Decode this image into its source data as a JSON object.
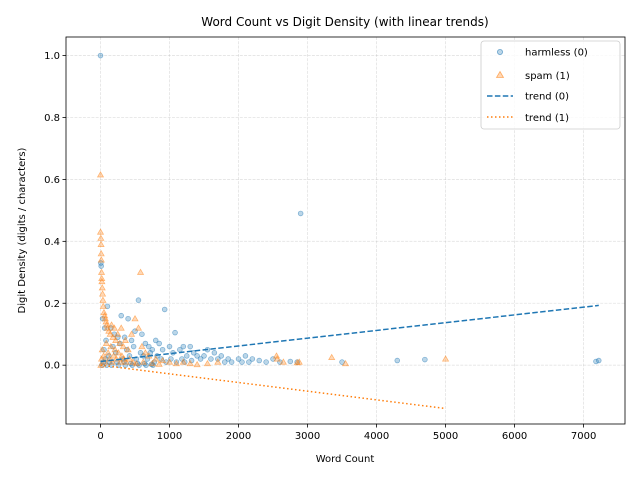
{
  "chart_data": {
    "type": "scatter",
    "title": "Word Count vs Digit Density (with linear trends)",
    "xlabel": "Word Count",
    "ylabel": "Digit Density (digits / characters)",
    "xlim": [
      -500,
      7600
    ],
    "ylim": [
      -0.19,
      1.06
    ],
    "xticks": [
      0,
      1000,
      2000,
      3000,
      4000,
      5000,
      6000,
      7000
    ],
    "yticks": [
      0.0,
      0.2,
      0.4,
      0.6,
      0.8,
      1.0
    ],
    "xtick_labels": [
      "0",
      "1000",
      "2000",
      "3000",
      "4000",
      "5000",
      "6000",
      "7000"
    ],
    "ytick_labels": [
      "0.0",
      "0.2",
      "0.4",
      "0.6",
      "0.8",
      "1.0"
    ],
    "grid": true,
    "legend_position": "top-right",
    "series": [
      {
        "name": "harmless (0)",
        "marker": "circle",
        "color": "#1f77b4",
        "points": [
          [
            0,
            1.0
          ],
          [
            5,
            0.33
          ],
          [
            10,
            0.32
          ],
          [
            30,
            0.15
          ],
          [
            60,
            0.12
          ],
          [
            100,
            0.19
          ],
          [
            150,
            0.12
          ],
          [
            200,
            0.1
          ],
          [
            250,
            0.09
          ],
          [
            300,
            0.16
          ],
          [
            350,
            0.09
          ],
          [
            400,
            0.15
          ],
          [
            450,
            0.08
          ],
          [
            500,
            0.11
          ],
          [
            550,
            0.21
          ],
          [
            600,
            0.1
          ],
          [
            650,
            0.07
          ],
          [
            700,
            0.06
          ],
          [
            750,
            0.05
          ],
          [
            800,
            0.08
          ],
          [
            850,
            0.07
          ],
          [
            900,
            0.05
          ],
          [
            930,
            0.18
          ],
          [
            1000,
            0.06
          ],
          [
            1050,
            0.04
          ],
          [
            1080,
            0.105
          ],
          [
            1150,
            0.05
          ],
          [
            1200,
            0.06
          ],
          [
            1250,
            0.03
          ],
          [
            1300,
            0.06
          ],
          [
            1350,
            0.04
          ],
          [
            1400,
            0.03
          ],
          [
            1450,
            0.02
          ],
          [
            1500,
            0.03
          ],
          [
            1550,
            0.05
          ],
          [
            1600,
            0.02
          ],
          [
            1650,
            0.04
          ],
          [
            1700,
            0.02
          ],
          [
            1750,
            0.03
          ],
          [
            1800,
            0.01
          ],
          [
            1850,
            0.02
          ],
          [
            1900,
            0.01
          ],
          [
            2000,
            0.02
          ],
          [
            2050,
            0.01
          ],
          [
            2100,
            0.03
          ],
          [
            2150,
            0.01
          ],
          [
            2200,
            0.02
          ],
          [
            2300,
            0.015
          ],
          [
            2400,
            0.01
          ],
          [
            2500,
            0.02
          ],
          [
            2600,
            0.01
          ],
          [
            2750,
            0.012
          ],
          [
            2850,
            0.01
          ],
          [
            2900,
            0.49
          ],
          [
            3500,
            0.01
          ],
          [
            4300,
            0.015
          ],
          [
            4700,
            0.018
          ],
          [
            7180,
            0.012
          ],
          [
            7220,
            0.015
          ],
          [
            50,
            0.05
          ],
          [
            80,
            0.08
          ],
          [
            120,
            0.03
          ],
          [
            180,
            0.06
          ],
          [
            220,
            0.04
          ],
          [
            280,
            0.07
          ],
          [
            320,
            0.02
          ],
          [
            380,
            0.05
          ],
          [
            420,
            0.03
          ],
          [
            480,
            0.06
          ],
          [
            520,
            0.02
          ],
          [
            580,
            0.04
          ],
          [
            620,
            0.03
          ],
          [
            680,
            0.02
          ],
          [
            720,
            0.04
          ],
          [
            780,
            0.01
          ],
          [
            820,
            0.03
          ],
          [
            880,
            0.02
          ],
          [
            950,
            0.01
          ],
          [
            1020,
            0.02
          ],
          [
            1100,
            0.01
          ],
          [
            1180,
            0.02
          ],
          [
            1220,
            0.01
          ],
          [
            1320,
            0.015
          ],
          [
            20,
            0.0
          ],
          [
            40,
            0.01
          ],
          [
            70,
            0.02
          ],
          [
            90,
            0.0
          ],
          [
            130,
            0.01
          ],
          [
            160,
            0.0
          ],
          [
            240,
            0.01
          ],
          [
            260,
            0.0
          ],
          [
            340,
            0.01
          ],
          [
            360,
            0.0
          ],
          [
            440,
            0.005
          ],
          [
            460,
            0.0
          ],
          [
            540,
            0.005
          ],
          [
            560,
            0.0
          ],
          [
            640,
            0.005
          ],
          [
            660,
            0.0
          ],
          [
            740,
            0.003
          ],
          [
            760,
            0.0
          ]
        ]
      },
      {
        "name": "spam (1)",
        "marker": "triangle",
        "color": "#ff7f0e",
        "points": [
          [
            0,
            0.615
          ],
          [
            0,
            0.43
          ],
          [
            5,
            0.41
          ],
          [
            8,
            0.39
          ],
          [
            10,
            0.36
          ],
          [
            12,
            0.34
          ],
          [
            15,
            0.3
          ],
          [
            18,
            0.28
          ],
          [
            20,
            0.27
          ],
          [
            25,
            0.25
          ],
          [
            30,
            0.23
          ],
          [
            35,
            0.21
          ],
          [
            40,
            0.19
          ],
          [
            50,
            0.17
          ],
          [
            60,
            0.16
          ],
          [
            70,
            0.15
          ],
          [
            80,
            0.14
          ],
          [
            90,
            0.13
          ],
          [
            100,
            0.12
          ],
          [
            120,
            0.11
          ],
          [
            140,
            0.1
          ],
          [
            160,
            0.13
          ],
          [
            180,
            0.09
          ],
          [
            200,
            0.12
          ],
          [
            220,
            0.08
          ],
          [
            250,
            0.1
          ],
          [
            280,
            0.07
          ],
          [
            300,
            0.12
          ],
          [
            330,
            0.06
          ],
          [
            360,
            0.08
          ],
          [
            400,
            0.05
          ],
          [
            450,
            0.1
          ],
          [
            500,
            0.15
          ],
          [
            550,
            0.12
          ],
          [
            580,
            0.3
          ],
          [
            600,
            0.06
          ],
          [
            650,
            0.04
          ],
          [
            700,
            0.03
          ],
          [
            800,
            0.02
          ],
          [
            900,
            0.015
          ],
          [
            1000,
            0.01
          ],
          [
            1100,
            0.005
          ],
          [
            1200,
            0.01
          ],
          [
            1300,
            0.005
          ],
          [
            1400,
            0.002
          ],
          [
            1550,
            0.005
          ],
          [
            1700,
            0.01
          ],
          [
            2550,
            0.03
          ],
          [
            2560,
            0.02
          ],
          [
            2650,
            0.01
          ],
          [
            2850,
            0.008
          ],
          [
            2880,
            0.01
          ],
          [
            3350,
            0.025
          ],
          [
            3550,
            0.005
          ],
          [
            5000,
            0.02
          ],
          [
            5,
            0.0
          ],
          [
            15,
            0.02
          ],
          [
            25,
            0.05
          ],
          [
            45,
            0.03
          ],
          [
            65,
            0.01
          ],
          [
            85,
            0.07
          ],
          [
            110,
            0.04
          ],
          [
            130,
            0.02
          ],
          [
            150,
            0.06
          ],
          [
            170,
            0.01
          ],
          [
            190,
            0.03
          ],
          [
            210,
            0.05
          ],
          [
            230,
            0.02
          ],
          [
            260,
            0.04
          ],
          [
            290,
            0.01
          ],
          [
            310,
            0.03
          ],
          [
            340,
            0.02
          ],
          [
            370,
            0.01
          ],
          [
            420,
            0.02
          ],
          [
            470,
            0.01
          ],
          [
            520,
            0.005
          ],
          [
            620,
            0.01
          ],
          [
            750,
            0.005
          ],
          [
            850,
            0.003
          ]
        ]
      }
    ],
    "trends": [
      {
        "name": "trend (0)",
        "style": "dashed",
        "color": "#1f77b4",
        "x": [
          0,
          7220
        ],
        "y": [
          0.012,
          0.193
        ]
      },
      {
        "name": "trend (1)",
        "style": "dotted",
        "color": "#ff7f0e",
        "x": [
          0,
          5000
        ],
        "y": [
          0.0,
          -0.14
        ]
      }
    ]
  }
}
